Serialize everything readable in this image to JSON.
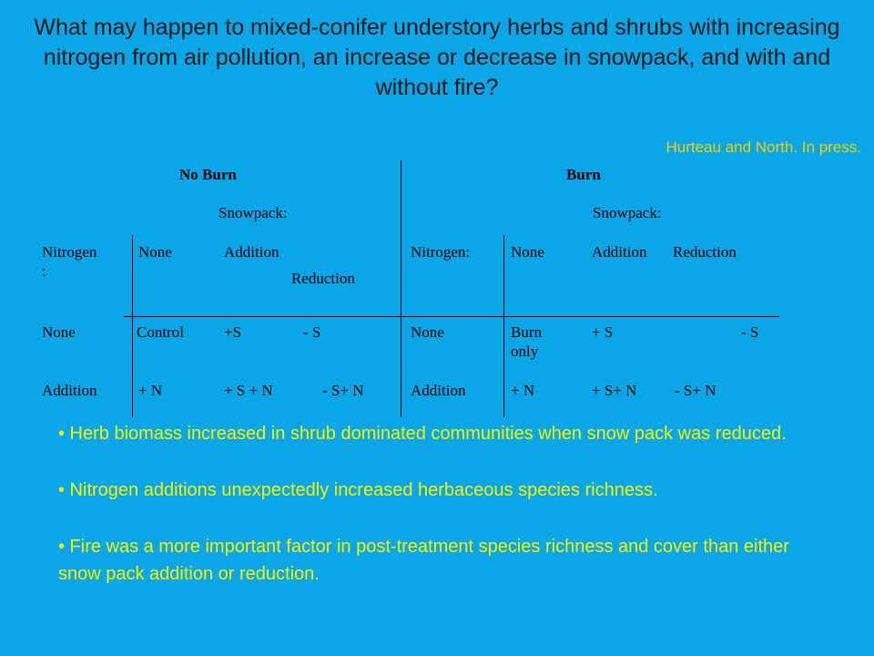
{
  "title": "What may happen to mixed-conifer understory herbs and shrubs with increasing nitrogen from air pollution, an increase or decrease in snowpack, and with and without fire?",
  "citation": "Hurteau and North. In press.",
  "table": {
    "no_burn": {
      "heading": "No Burn",
      "snowpack_label": "Snowpack:",
      "header_row": [
        "Nitrogen\n:",
        "None",
        "Addition",
        "Reduction"
      ],
      "rows": [
        [
          "None",
          "Control",
          "+S",
          "- S"
        ],
        [
          "Addition",
          "+ N",
          "+ S + N",
          "- S+ N"
        ]
      ]
    },
    "burn": {
      "heading": "Burn",
      "snowpack_label": "Snowpack:",
      "header_row": [
        "Nitrogen:",
        "None",
        "Addition",
        "Reduction"
      ],
      "rows": [
        [
          "None",
          "Burn\nonly",
          "+ S",
          "- S"
        ],
        [
          "Addition",
          "+ N",
          "+ S+ N",
          "- S+ N"
        ]
      ]
    }
  },
  "bullets": [
    "• Herb biomass increased in shrub dominated communities when snow pack was reduced.",
    "• Nitrogen additions unexpectedly increased herbaceous species richness.",
    "• Fire was a more important factor in post-treatment species richness and cover than either snow pack addition or reduction."
  ],
  "colors": {
    "background": "#0aa6e8",
    "bullet_text": "#f4f400",
    "citation": "#f2d100"
  }
}
